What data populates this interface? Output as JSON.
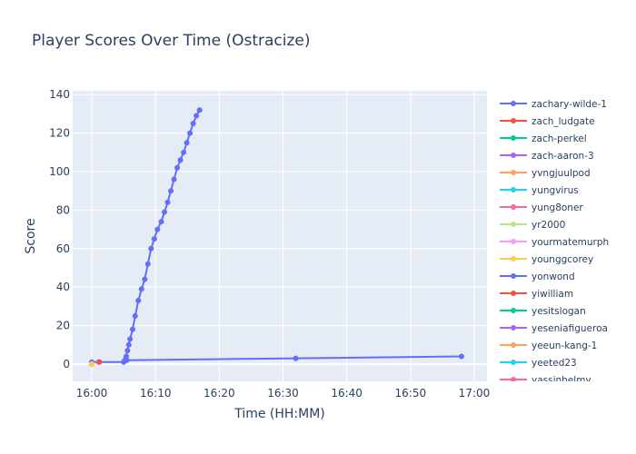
{
  "chart_data": {
    "type": "line",
    "title": "Player Scores Over Time (Ostracize)",
    "xlabel": "Time (HH:MM)",
    "ylabel": "Score",
    "xlim": [
      "15:57",
      "17:02"
    ],
    "ylim": [
      -9,
      142
    ],
    "x_ticks": [
      "16:00",
      "16:10",
      "16:20",
      "16:30",
      "16:40",
      "16:50",
      "17:00"
    ],
    "y_ticks": [
      0,
      20,
      40,
      60,
      80,
      100,
      120,
      140
    ],
    "grid": true,
    "legend_position": "right",
    "series": [
      {
        "name": "zachary-wilde-1",
        "color": "#636efa",
        "x": [
          "16:00.0",
          "16:01.2",
          "16:05.0",
          "16:05.2",
          "16:05.4",
          "16:05.6",
          "16:05.8",
          "16:06.0",
          "16:06.4",
          "16:06.8",
          "16:07.3",
          "16:07.8",
          "16:08.3",
          "16:08.8",
          "16:09.3",
          "16:09.8",
          "16:10.3",
          "16:10.9",
          "16:11.4",
          "16:11.9",
          "16:12.4",
          "16:12.9",
          "16:13.4",
          "16:13.9",
          "16:14.4",
          "16:14.9",
          "16:15.4",
          "16:15.9",
          "16:16.4",
          "16:16.9"
        ],
        "y": [
          1,
          1,
          1,
          2,
          4,
          7,
          10,
          13,
          18,
          25,
          33,
          39,
          44,
          52,
          60,
          65,
          70,
          74,
          79,
          84,
          90,
          96,
          102,
          106,
          110,
          115,
          120,
          125,
          129,
          132
        ]
      },
      {
        "name": "zachary-wilde-1",
        "color": "#636efa",
        "legend": false,
        "x": [
          "16:05.5",
          "16:32.0",
          "16:58.0"
        ],
        "y": [
          2,
          3,
          4
        ]
      },
      {
        "name": "zach_ludgate",
        "color": "#ef553b",
        "x": [
          "16:01.1"
        ],
        "y": [
          1
        ]
      },
      {
        "name": "zach-perkel",
        "color": "#00cc96",
        "x": [],
        "y": []
      },
      {
        "name": "zach-aaron-3",
        "color": "#ab63fa",
        "x": [],
        "y": []
      },
      {
        "name": "yvngjuulpod",
        "color": "#ffa15a",
        "x": [
          "16:00.0"
        ],
        "y": [
          0
        ]
      },
      {
        "name": "yungvirus",
        "color": "#19d3f3",
        "x": [],
        "y": []
      },
      {
        "name": "yung8oner",
        "color": "#ff6692",
        "x": [],
        "y": []
      },
      {
        "name": "yr2000",
        "color": "#b6e880",
        "x": [],
        "y": []
      },
      {
        "name": "yourmatemurph",
        "color": "#ff97ff",
        "x": [],
        "y": []
      },
      {
        "name": "younggcorey",
        "color": "#fecb52",
        "x": [
          "16:00.0"
        ],
        "y": [
          0
        ]
      },
      {
        "name": "yonwond",
        "color": "#636efa",
        "x": [],
        "y": []
      },
      {
        "name": "yiwilliam",
        "color": "#ef553b",
        "x": [],
        "y": []
      },
      {
        "name": "yesitslogan",
        "color": "#00cc96",
        "x": [],
        "y": []
      },
      {
        "name": "yeseniafigueroa",
        "color": "#ab63fa",
        "x": [],
        "y": []
      },
      {
        "name": "yeeun-kang-1",
        "color": "#ffa15a",
        "x": [],
        "y": []
      },
      {
        "name": "yeeted23",
        "color": "#19d3f3",
        "x": [],
        "y": []
      },
      {
        "name": "yassinhelmy",
        "color": "#ff6692",
        "x": [],
        "y": []
      }
    ]
  }
}
